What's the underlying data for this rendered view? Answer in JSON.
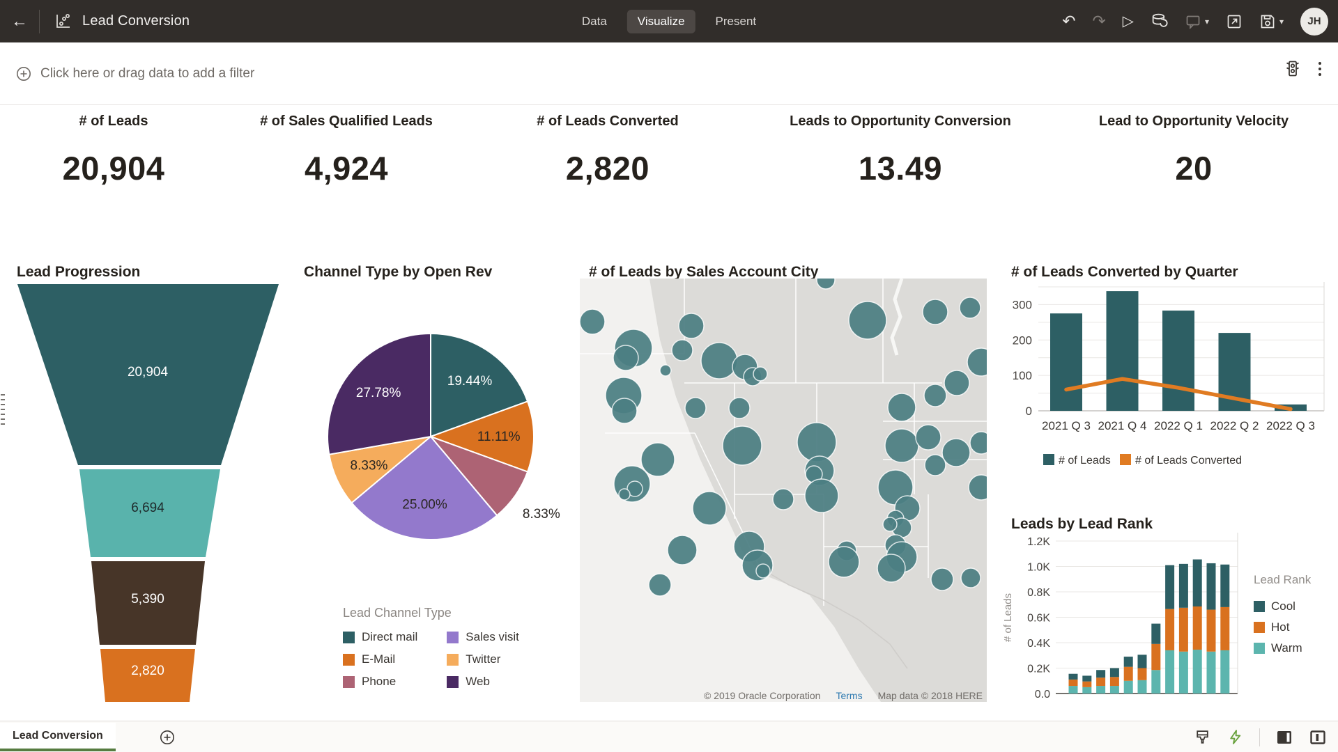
{
  "header": {
    "title": "Lead Conversion",
    "tabs": [
      {
        "label": "Data",
        "active": false
      },
      {
        "label": "Visualize",
        "active": true
      },
      {
        "label": "Present",
        "active": false
      }
    ],
    "avatar_initials": "JH"
  },
  "filter_bar": {
    "prompt": "Click here or drag data to add a filter"
  },
  "kpis": [
    {
      "label": "# of Leads",
      "value": "20,904"
    },
    {
      "label": "# of Sales Qualified Leads",
      "value": "4,924"
    },
    {
      "label": "# of Leads Converted",
      "value": "2,820"
    },
    {
      "label": "Leads to Opportunity Conversion",
      "value": "13.49"
    },
    {
      "label": "Lead to Opportunity Velocity",
      "value": "20"
    }
  ],
  "chart_data": [
    {
      "id": "funnel",
      "type": "funnel",
      "title": "Lead Progression",
      "labels": [
        "20,904",
        "6,694",
        "5,390",
        "2,820"
      ],
      "values": [
        20904,
        6694,
        5390,
        2820
      ],
      "colors": [
        "#2d5f64",
        "#59b3ac",
        "#473528",
        "#d9711f"
      ],
      "label_colors": [
        "#ffffff",
        "#1e2a2b",
        "#ffffff",
        "#ffffff"
      ]
    },
    {
      "id": "pie",
      "type": "pie",
      "title": "Channel Type by Open Rev",
      "legend_title": "Lead Channel Type",
      "slices": [
        {
          "label": "Direct mail",
          "value": 19.44,
          "pct_label": "19.44%",
          "color": "#2d5f64",
          "text_color": "#ffffff",
          "outside": false
        },
        {
          "label": "E-Mail",
          "value": 11.11,
          "pct_label": "11.11%",
          "color": "#d9711f",
          "text_color": "#2a2622",
          "outside": false
        },
        {
          "label": "Phone",
          "value": 8.33,
          "pct_label": "8.33%",
          "color": "#ad6374",
          "text_color": "#2a2622",
          "outside": true
        },
        {
          "label": "Sales visit",
          "value": 25.0,
          "pct_label": "25.00%",
          "color": "#9379cc",
          "text_color": "#2a2622",
          "outside": false
        },
        {
          "label": "Twitter",
          "value": 8.33,
          "pct_label": "8.33%",
          "color": "#f5ac5c",
          "text_color": "#2a2622",
          "outside": false
        },
        {
          "label": "Web",
          "value": 27.78,
          "pct_label": "27.78%",
          "color": "#4a2a63",
          "text_color": "#ffffff",
          "outside": false
        }
      ]
    },
    {
      "id": "map",
      "type": "map-bubble",
      "title": "# of Leads by Sales Account City",
      "bubble_color": "#4c7f83",
      "attribution": {
        "copyright": "© 2019 Oracle Corporation",
        "terms": "Terms",
        "map_data": "Map data © 2018 HERE"
      },
      "bubbles": [
        [
          353,
          2,
          13
        ],
        [
          18,
          62,
          18
        ],
        [
          77,
          100,
          27
        ],
        [
          66,
          114,
          18
        ],
        [
          160,
          68,
          18
        ],
        [
          147,
          103,
          15
        ],
        [
          123,
          132,
          8
        ],
        [
          200,
          118,
          26
        ],
        [
          237,
          127,
          18
        ],
        [
          248,
          141,
          13
        ],
        [
          259,
          137,
          10
        ],
        [
          63,
          168,
          26
        ],
        [
          64,
          190,
          18
        ],
        [
          166,
          186,
          15
        ],
        [
          229,
          186,
          15
        ],
        [
          233,
          240,
          28
        ],
        [
          112,
          260,
          24
        ],
        [
          75,
          295,
          26
        ],
        [
          79,
          302,
          11
        ],
        [
          64,
          310,
          8
        ],
        [
          186,
          330,
          24
        ],
        [
          147,
          390,
          21
        ],
        [
          243,
          385,
          22
        ],
        [
          255,
          412,
          22
        ],
        [
          292,
          317,
          15
        ],
        [
          340,
          235,
          28
        ],
        [
          344,
          276,
          21
        ],
        [
          336,
          281,
          12
        ],
        [
          347,
          312,
          24
        ],
        [
          383,
          391,
          14
        ],
        [
          379,
          407,
          22
        ],
        [
          413,
          60,
          27
        ],
        [
          510,
          48,
          18
        ],
        [
          560,
          42,
          15
        ],
        [
          462,
          185,
          20
        ],
        [
          510,
          168,
          16
        ],
        [
          541,
          150,
          18
        ],
        [
          576,
          120,
          20
        ],
        [
          462,
          240,
          24
        ],
        [
          500,
          228,
          18
        ],
        [
          540,
          250,
          20
        ],
        [
          576,
          236,
          16
        ],
        [
          510,
          268,
          15
        ],
        [
          453,
          300,
          25
        ],
        [
          470,
          330,
          18
        ],
        [
          576,
          300,
          18
        ],
        [
          453,
          345,
          12
        ],
        [
          462,
          358,
          14
        ],
        [
          445,
          353,
          10
        ],
        [
          453,
          383,
          15
        ],
        [
          462,
          400,
          22
        ],
        [
          447,
          416,
          20
        ],
        [
          520,
          432,
          16
        ],
        [
          561,
          430,
          14
        ],
        [
          263,
          420,
          10
        ],
        [
          115,
          440,
          16
        ]
      ]
    },
    {
      "id": "quarters",
      "type": "bar+line",
      "title": "# of Leads Converted by Quarter",
      "categories": [
        "2021 Q 3",
        "2021 Q 4",
        "2022 Q 1",
        "2022 Q 2",
        "2022 Q 3"
      ],
      "series": [
        {
          "name": "# of Leads",
          "type": "bar",
          "color": "#2d5f64",
          "values": [
            275,
            338,
            283,
            220,
            18
          ]
        },
        {
          "name": "# of Leads Converted",
          "type": "line",
          "color": "#e07b22",
          "values": [
            60,
            90,
            65,
            35,
            5
          ]
        }
      ],
      "y_ticks": [
        0,
        100,
        200,
        300
      ],
      "grid_max": 350,
      "grid_step": 50,
      "legend_position": "bottom"
    },
    {
      "id": "rank",
      "type": "stacked-bar",
      "title": "Leads by Lead Rank",
      "ylabel": "# of Leads",
      "legend_title": "Lead Rank",
      "y_tick_labels": [
        "0.0",
        "0.2K",
        "0.4K",
        "0.6K",
        "0.8K",
        "1.0K",
        "1.2K"
      ],
      "y_tick_values": [
        0,
        200,
        400,
        600,
        800,
        1000,
        1200
      ],
      "series": [
        {
          "name": "Cool",
          "color": "#2d5f64",
          "values": [
            45,
            45,
            60,
            70,
            80,
            105,
            160,
            345,
            345,
            370,
            365,
            335
          ]
        },
        {
          "name": "Hot",
          "color": "#d9711f",
          "values": [
            50,
            45,
            65,
            70,
            110,
            95,
            205,
            325,
            345,
            340,
            330,
            340
          ]
        },
        {
          "name": "Warm",
          "color": "#5cb5ae",
          "values": [
            60,
            50,
            60,
            60,
            100,
            105,
            185,
            340,
            330,
            345,
            330,
            340
          ]
        }
      ],
      "stack_order_bottom_to_top": [
        "Warm",
        "Hot",
        "Cool"
      ],
      "legend_position": "right"
    }
  ],
  "bottom_bar": {
    "canvas_tab": "Lead Conversion"
  }
}
